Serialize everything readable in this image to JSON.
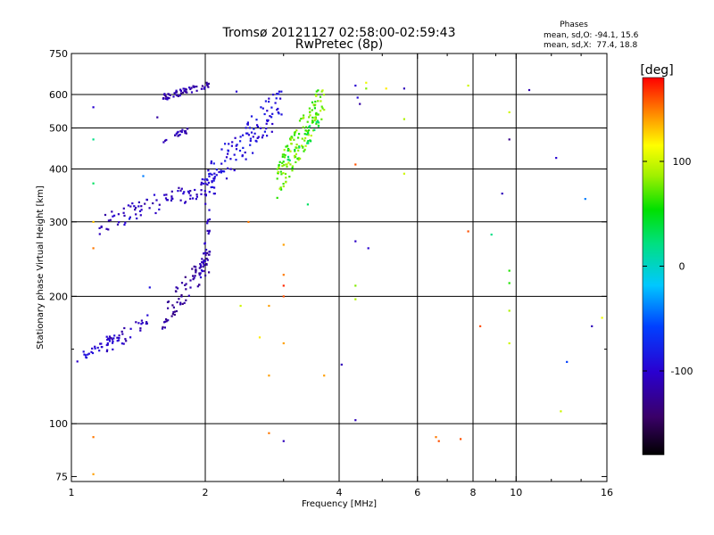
{
  "chart_data": {
    "type": "scatter",
    "title": "Tromsø 20121127 02:58:00-02:59:43",
    "subtitle": "RwPretec (8p)",
    "xlabel": "Frequency [MHz]",
    "ylabel": "Stationary phase Virtual Height [km]",
    "x_scale": "log",
    "y_scale": "log",
    "xlim": [
      1,
      16
    ],
    "ylim": [
      73,
      750
    ],
    "x_ticks": [
      {
        "value": 1,
        "label": "1"
      },
      {
        "value": 2,
        "label": "2"
      },
      {
        "value": 4,
        "label": "4"
      },
      {
        "value": 6,
        "label": "6"
      },
      {
        "value": 8,
        "label": "8"
      },
      {
        "value": 10,
        "label": "10"
      },
      {
        "value": 16,
        "label": "16"
      }
    ],
    "x_minor_ticks": [
      3,
      5,
      7,
      9,
      12,
      14
    ],
    "y_ticks": [
      {
        "value": 75,
        "label": "75"
      },
      {
        "value": 100,
        "label": "100"
      },
      {
        "value": 200,
        "label": "200"
      },
      {
        "value": 300,
        "label": "300"
      },
      {
        "value": 400,
        "label": "400"
      },
      {
        "value": 500,
        "label": "500"
      },
      {
        "value": 600,
        "label": "600"
      },
      {
        "value": 750,
        "label": "750"
      }
    ],
    "y_minor_ticks": [
      150
    ],
    "grid_x": [
      1,
      2,
      4,
      6,
      8,
      10
    ],
    "grid_y": [
      100,
      200,
      300,
      400,
      500,
      600
    ],
    "annotation": {
      "title": "Phases",
      "line1": "mean, sd,O: -94.1, 15.6",
      "line2": "mean, sd,X:  77.4, 18.8"
    },
    "colorbar": {
      "label": "[deg]",
      "range": [
        -180,
        180
      ],
      "ticks": [
        {
          "value": 100,
          "label": "100"
        },
        {
          "value": 0,
          "label": "0"
        },
        {
          "value": -100,
          "label": "-100"
        }
      ]
    },
    "clusters": [
      {
        "id": "low-e-trace",
        "x": [
          1.03,
          1.25
        ],
        "y": [
          138,
          162
        ],
        "phase": [
          -110,
          -85
        ],
        "n": 34
      },
      {
        "id": "low-e-trace-2",
        "x": [
          1.2,
          1.55
        ],
        "y": [
          145,
          185
        ],
        "phase": [
          -125,
          -95
        ],
        "n": 30
      },
      {
        "id": "f1-lower-rise",
        "x": [
          1.6,
          2.05
        ],
        "y": [
          165,
          255
        ],
        "phase": [
          -135,
          -110
        ],
        "n": 75
      },
      {
        "id": "f1-lower-upper",
        "x": [
          1.95,
          2.05
        ],
        "y": [
          200,
          320
        ],
        "phase": [
          -115,
          -95
        ],
        "n": 25
      },
      {
        "id": "f-main-band",
        "x": [
          1.15,
          2.1
        ],
        "y": [
          280,
          380
        ],
        "phase": [
          -120,
          -95
        ],
        "n": 90
      },
      {
        "id": "f-ordinary-rise",
        "x": [
          2.0,
          3.0
        ],
        "y": [
          330,
          610
        ],
        "phase": [
          -105,
          -80
        ],
        "n": 120
      },
      {
        "id": "f-extraordinary",
        "x": [
          2.9,
          3.7
        ],
        "y": [
          340,
          620
        ],
        "phase": [
          55,
          95
        ],
        "n": 150
      },
      {
        "id": "f-x-green",
        "x": [
          3.0,
          3.6
        ],
        "y": [
          400,
          520
        ],
        "phase": [
          20,
          45
        ],
        "n": 20
      },
      {
        "id": "top-cluster",
        "x": [
          1.6,
          2.05
        ],
        "y": [
          580,
          640
        ],
        "phase": [
          -130,
          -100
        ],
        "n": 55
      },
      {
        "id": "mid-upper",
        "x": [
          1.6,
          1.85
        ],
        "y": [
          460,
          500
        ],
        "phase": [
          -130,
          -100
        ],
        "n": 20
      }
    ],
    "points": [
      {
        "x": 1.12,
        "y": 560,
        "phase": -100
      },
      {
        "x": 1.12,
        "y": 470,
        "phase": 20
      },
      {
        "x": 1.12,
        "y": 370,
        "phase": 30
      },
      {
        "x": 1.12,
        "y": 300,
        "phase": 130
      },
      {
        "x": 1.12,
        "y": 260,
        "phase": 150
      },
      {
        "x": 1.12,
        "y": 93,
        "phase": 150
      },
      {
        "x": 1.12,
        "y": 76,
        "phase": 140
      },
      {
        "x": 1.35,
        "y": 305,
        "phase": -80
      },
      {
        "x": 1.45,
        "y": 385,
        "phase": -40
      },
      {
        "x": 1.5,
        "y": 210,
        "phase": -90
      },
      {
        "x": 1.56,
        "y": 530,
        "phase": -120
      },
      {
        "x": 2.35,
        "y": 610,
        "phase": -100
      },
      {
        "x": 2.4,
        "y": 190,
        "phase": 100
      },
      {
        "x": 2.5,
        "y": 300,
        "phase": 150
      },
      {
        "x": 2.65,
        "y": 160,
        "phase": 120
      },
      {
        "x": 2.78,
        "y": 190,
        "phase": 140
      },
      {
        "x": 2.78,
        "y": 130,
        "phase": 140
      },
      {
        "x": 2.78,
        "y": 95,
        "phase": 150
      },
      {
        "x": 3.0,
        "y": 265,
        "phase": 140
      },
      {
        "x": 3.0,
        "y": 225,
        "phase": 150
      },
      {
        "x": 3.0,
        "y": 212,
        "phase": 170
      },
      {
        "x": 3.0,
        "y": 200,
        "phase": 160
      },
      {
        "x": 3.0,
        "y": 155,
        "phase": 140
      },
      {
        "x": 3.0,
        "y": 91,
        "phase": -110
      },
      {
        "x": 3.4,
        "y": 330,
        "phase": 30
      },
      {
        "x": 3.7,
        "y": 130,
        "phase": 140
      },
      {
        "x": 4.05,
        "y": 138,
        "phase": -110
      },
      {
        "x": 4.35,
        "y": 630,
        "phase": -100
      },
      {
        "x": 4.4,
        "y": 590,
        "phase": -95
      },
      {
        "x": 4.45,
        "y": 570,
        "phase": -120
      },
      {
        "x": 4.35,
        "y": 410,
        "phase": 160
      },
      {
        "x": 4.35,
        "y": 270,
        "phase": -105
      },
      {
        "x": 4.35,
        "y": 212,
        "phase": 80
      },
      {
        "x": 4.35,
        "y": 197,
        "phase": 90
      },
      {
        "x": 4.35,
        "y": 102,
        "phase": -110
      },
      {
        "x": 4.6,
        "y": 640,
        "phase": 110
      },
      {
        "x": 4.6,
        "y": 620,
        "phase": 80
      },
      {
        "x": 4.65,
        "y": 260,
        "phase": -100
      },
      {
        "x": 5.1,
        "y": 620,
        "phase": 120
      },
      {
        "x": 5.6,
        "y": 620,
        "phase": -110
      },
      {
        "x": 5.6,
        "y": 525,
        "phase": 90
      },
      {
        "x": 5.6,
        "y": 390,
        "phase": 100
      },
      {
        "x": 6.6,
        "y": 93,
        "phase": 150
      },
      {
        "x": 6.7,
        "y": 91,
        "phase": 160
      },
      {
        "x": 7.5,
        "y": 92,
        "phase": 160
      },
      {
        "x": 7.8,
        "y": 630,
        "phase": 100
      },
      {
        "x": 7.8,
        "y": 285,
        "phase": 160
      },
      {
        "x": 8.3,
        "y": 170,
        "phase": 160
      },
      {
        "x": 8.8,
        "y": 280,
        "phase": 20
      },
      {
        "x": 9.3,
        "y": 350,
        "phase": -110
      },
      {
        "x": 9.65,
        "y": 545,
        "phase": 100
      },
      {
        "x": 9.65,
        "y": 470,
        "phase": -130
      },
      {
        "x": 9.65,
        "y": 230,
        "phase": 60
      },
      {
        "x": 9.65,
        "y": 215,
        "phase": 60
      },
      {
        "x": 9.65,
        "y": 185,
        "phase": 90
      },
      {
        "x": 9.65,
        "y": 155,
        "phase": 100
      },
      {
        "x": 10.7,
        "y": 615,
        "phase": -115
      },
      {
        "x": 12.3,
        "y": 425,
        "phase": -100
      },
      {
        "x": 12.6,
        "y": 107,
        "phase": 100
      },
      {
        "x": 13.0,
        "y": 140,
        "phase": -60
      },
      {
        "x": 14.3,
        "y": 340,
        "phase": -40
      },
      {
        "x": 14.8,
        "y": 170,
        "phase": -110
      },
      {
        "x": 15.6,
        "y": 178,
        "phase": 110
      }
    ]
  }
}
